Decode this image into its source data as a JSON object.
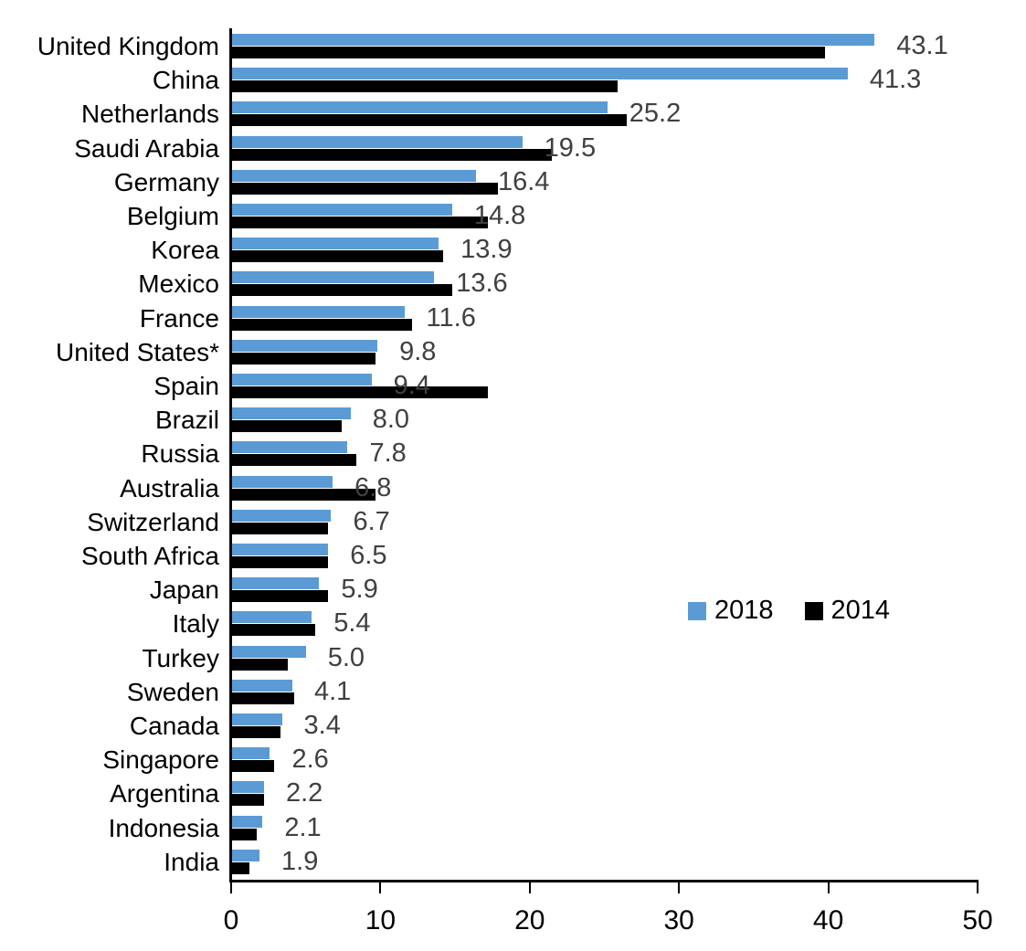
{
  "chart_data": {
    "type": "bar",
    "orientation": "horizontal",
    "grouped": true,
    "title": "",
    "xlabel": "",
    "ylabel": "",
    "xlim": [
      0,
      50
    ],
    "xticks": [
      0,
      10,
      20,
      30,
      40,
      50
    ],
    "grid": false,
    "legend_position": "middle-right",
    "value_label_color": "#404040",
    "categories": [
      "United Kingdom",
      "China",
      "Netherlands",
      "Saudi Arabia",
      "Germany",
      "Belgium",
      "Korea",
      "Mexico",
      "France",
      "United States*",
      "Spain",
      "Brazil",
      "Russia",
      "Australia",
      "Switzerland",
      "South Africa",
      "Japan",
      "Italy",
      "Turkey",
      "Sweden",
      "Canada",
      "Singapore",
      "Argentina",
      "Indonesia",
      "India"
    ],
    "series": [
      {
        "name": "2018",
        "color": "#5B9BD5",
        "values": [
          43.1,
          41.3,
          25.2,
          19.5,
          16.4,
          14.8,
          13.9,
          13.6,
          11.6,
          9.8,
          9.4,
          8.0,
          7.8,
          6.8,
          6.7,
          6.5,
          5.9,
          5.4,
          5.0,
          4.1,
          3.4,
          2.6,
          2.2,
          2.1,
          1.9
        ],
        "value_labels": [
          "43.1",
          "41.3",
          "25.2",
          "19.5",
          "16.4",
          "14.8",
          "13.9",
          "13.6",
          "11.6",
          "9.8",
          "9.4",
          "8.0",
          "7.8",
          "6.8",
          "6.7",
          "6.5",
          "5.9",
          "5.4",
          "5.0",
          "4.1",
          "3.4",
          "2.6",
          "2.2",
          "2.1",
          "1.9"
        ]
      },
      {
        "name": "2014",
        "color": "#000000",
        "values": [
          39.8,
          25.9,
          26.5,
          21.5,
          17.9,
          17.2,
          14.2,
          14.8,
          12.1,
          9.7,
          17.2,
          7.4,
          8.4,
          9.7,
          6.5,
          6.5,
          6.5,
          5.6,
          3.8,
          4.2,
          3.3,
          2.9,
          2.2,
          1.7,
          1.2
        ]
      }
    ]
  }
}
